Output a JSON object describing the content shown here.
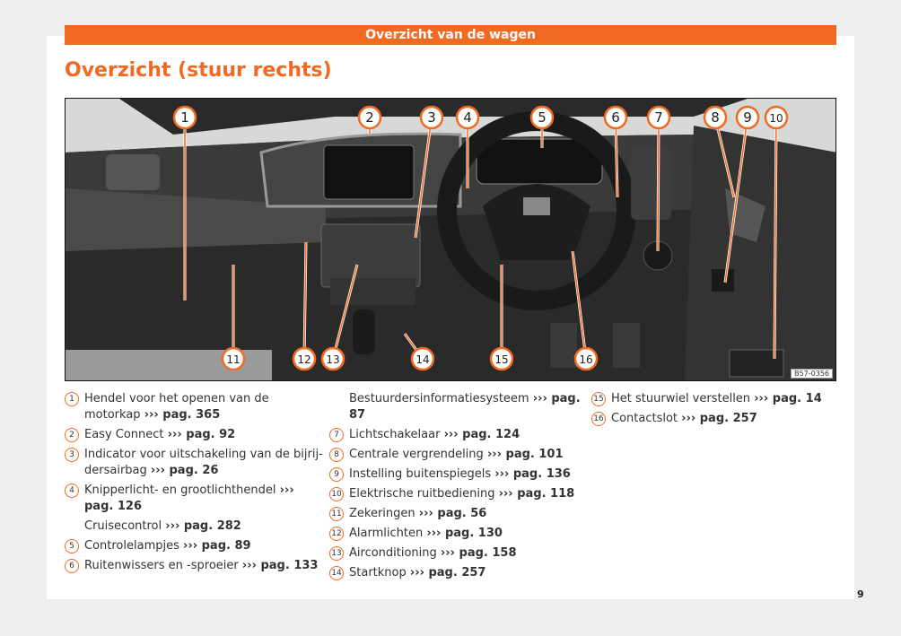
{
  "header": {
    "section": "Overzicht van de wagen",
    "title": "Overzicht (stuur rechts)"
  },
  "figure": {
    "code": "B57-0356",
    "callouts": [
      "1",
      "2",
      "3",
      "4",
      "5",
      "6",
      "7",
      "8",
      "9",
      "10",
      "11",
      "12",
      "13",
      "14",
      "15",
      "16"
    ]
  },
  "legend": [
    {
      "n": "1",
      "text": "Hendel voor het openen van de motorkap",
      "ref": "››› pag. 365"
    },
    {
      "n": "2",
      "text": "Easy Connect",
      "ref": "››› pag. 92"
    },
    {
      "n": "3",
      "text": "Indicator voor uitschakeling van de bijrij-dersairbag",
      "ref": "››› pag. 26"
    },
    {
      "n": "4",
      "text": "Knipperlicht- en grootlichthendel",
      "ref": "››› pag. 126"
    },
    {
      "n": "",
      "text": "Cruisecontrol",
      "ref": "››› pag. 282"
    },
    {
      "n": "5",
      "text": "Controlelampjes",
      "ref": "››› pag. 89"
    },
    {
      "n": "6",
      "text": "Ruitenwissers en -sproeier",
      "ref": "››› pag. 133"
    },
    {
      "n": "",
      "text": "Bestuurdersinformatiesysteem",
      "ref": "››› pag. 87"
    },
    {
      "n": "7",
      "text": "Lichtschakelaar",
      "ref": "››› pag. 124"
    },
    {
      "n": "8",
      "text": "Centrale vergrendeling",
      "ref": "››› pag. 101"
    },
    {
      "n": "9",
      "text": "Instelling buitenspiegels",
      "ref": "››› pag. 136"
    },
    {
      "n": "10",
      "text": "Elektrische ruitbediening",
      "ref": "››› pag. 118"
    },
    {
      "n": "11",
      "text": "Zekeringen",
      "ref": "››› pag. 56"
    },
    {
      "n": "12",
      "text": "Alarmlichten",
      "ref": "››› pag. 130"
    },
    {
      "n": "13",
      "text": "Airconditioning",
      "ref": "››› pag. 158"
    },
    {
      "n": "14",
      "text": "Startknop",
      "ref": "››› pag. 257"
    },
    {
      "n": "15",
      "text": "Het stuurwiel verstellen",
      "ref": "››› pag. 14"
    },
    {
      "n": "16",
      "text": "Contactslot",
      "ref": "››› pag. 257"
    }
  ],
  "page_number": "9",
  "colors": {
    "accent": "#f26a21"
  }
}
